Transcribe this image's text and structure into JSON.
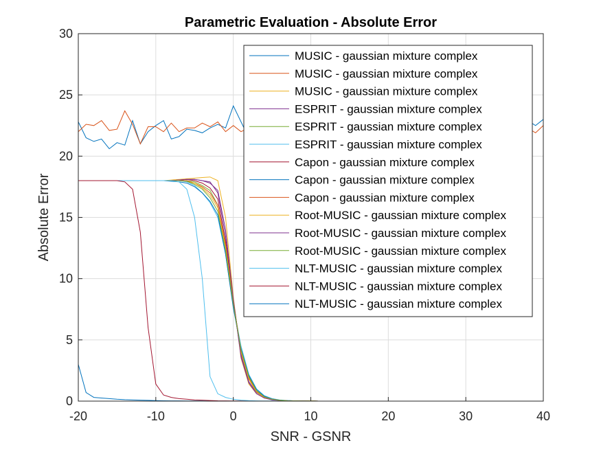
{
  "chart_data": {
    "type": "line",
    "title": "Parametric Evaluation - Absolute Error",
    "xlabel": "SNR - GSNR",
    "ylabel": "Absolute Error",
    "xlim": [
      -20,
      40
    ],
    "ylim": [
      0,
      30
    ],
    "xticks": [
      -20,
      -10,
      0,
      10,
      20,
      30,
      40
    ],
    "yticks": [
      0,
      5,
      10,
      15,
      20,
      25,
      30
    ],
    "grid": true,
    "legend_position": "top-right",
    "x": [
      -20,
      -19,
      -18,
      -17,
      -16,
      -15,
      -14,
      -13,
      -12,
      -11,
      -10,
      -9,
      -8,
      -7,
      -6,
      -5,
      -4,
      -3,
      -2,
      -1,
      0,
      1,
      2,
      3,
      4,
      5,
      6,
      7,
      8,
      9,
      10,
      11,
      12,
      13,
      14,
      15,
      16,
      17,
      18,
      19,
      20,
      21,
      22,
      23,
      24,
      25,
      26,
      27,
      28,
      29,
      30,
      31,
      32,
      33,
      34,
      35,
      36,
      37,
      38,
      39,
      40
    ],
    "series": [
      {
        "name": "MUSIC - gaussian mixture complex",
        "color": "#0072BD",
        "values": [
          22.8,
          21.5,
          21.2,
          21.4,
          20.6,
          21.1,
          20.9,
          22.9,
          21.0,
          22.0,
          22.5,
          22.9,
          21.4,
          21.6,
          22.2,
          22.1,
          21.9,
          22.3,
          22.6,
          22.3,
          24.1,
          22.8,
          21.5,
          22.5,
          22.1,
          22.8,
          21.9,
          22.4,
          22.6,
          22.0,
          22.3,
          22.8,
          21.8,
          22.4,
          22.9,
          21.6,
          22.2,
          22.5,
          22.0,
          22.7,
          21.9,
          22.4,
          22.8,
          22.1,
          22.5,
          21.8,
          22.6,
          22.3,
          22.0,
          22.9,
          22.2,
          21.7,
          22.5,
          22.8,
          22.1,
          22.4,
          22.6,
          22.0,
          22.9,
          22.5,
          23.0
        ]
      },
      {
        "name": "MUSIC - gaussian mixture complex",
        "color": "#D95319",
        "values": [
          22.0,
          22.6,
          22.5,
          22.9,
          22.1,
          22.2,
          23.7,
          22.6,
          21.0,
          22.4,
          22.4,
          22.0,
          22.7,
          22.0,
          22.3,
          22.3,
          22.7,
          22.4,
          22.8,
          22.0,
          22.5,
          22.0,
          22.3,
          22.2,
          22.6,
          21.9,
          22.4,
          22.1,
          22.8,
          22.3,
          21.9,
          22.5,
          22.2,
          22.7,
          22.0,
          22.4,
          22.6,
          22.1,
          22.3,
          22.8,
          21.8,
          22.5,
          22.2,
          22.6,
          22.0,
          22.4,
          22.9,
          22.1,
          22.3,
          22.7,
          21.9,
          22.5,
          22.2,
          22.8,
          22.0,
          22.4,
          22.6,
          22.1,
          22.3,
          21.9,
          22.5
        ]
      },
      {
        "name": "MUSIC - gaussian mixture complex",
        "color": "#EDB120",
        "values": [
          18,
          18,
          18,
          18,
          18,
          18,
          18,
          18,
          18,
          18,
          18,
          18,
          18.05,
          18.1,
          18.15,
          18.2,
          18.25,
          18.3,
          18.0,
          15.0,
          8.5,
          3.5,
          1.4,
          0.6,
          0.25,
          0.12,
          0.06,
          0.03,
          0.02,
          0.01,
          0.01,
          0,
          0,
          0,
          0,
          0,
          0,
          0,
          0,
          0,
          0,
          0,
          0,
          0,
          0,
          0,
          0,
          0,
          0,
          0,
          0,
          0,
          0,
          0,
          0,
          0,
          0,
          0,
          0,
          0,
          0
        ]
      },
      {
        "name": "ESPRIT - gaussian mixture complex",
        "color": "#7E2F8E",
        "values": [
          18,
          18,
          18,
          18,
          18,
          18,
          18,
          18,
          18,
          18,
          18,
          18,
          18,
          18.05,
          18.1,
          18.1,
          18.0,
          17.9,
          17.0,
          13.5,
          8.0,
          3.8,
          1.6,
          0.7,
          0.3,
          0.15,
          0.08,
          0.04,
          0.02,
          0.01,
          0.01,
          0,
          0,
          0,
          0,
          0,
          0,
          0,
          0,
          0,
          0,
          0,
          0,
          0,
          0,
          0,
          0,
          0,
          0,
          0,
          0,
          0,
          0,
          0,
          0,
          0,
          0,
          0,
          0,
          0,
          0
        ]
      },
      {
        "name": "ESPRIT - gaussian mixture complex",
        "color": "#77AC30",
        "values": [
          18,
          18,
          18,
          18,
          18,
          18,
          18,
          18,
          18,
          18,
          18,
          18,
          18,
          18,
          18.0,
          17.9,
          17.6,
          17.2,
          16.0,
          12.5,
          8.0,
          4.2,
          1.9,
          0.8,
          0.35,
          0.15,
          0.07,
          0.03,
          0.02,
          0.01,
          0.01,
          0,
          0,
          0,
          0,
          0,
          0,
          0,
          0,
          0,
          0,
          0,
          0,
          0,
          0,
          0,
          0,
          0,
          0,
          0,
          0,
          0,
          0,
          0,
          0,
          0,
          0,
          0,
          0,
          0,
          0
        ]
      },
      {
        "name": "ESPRIT - gaussian mixture complex",
        "color": "#4DBEEE",
        "values": [
          18,
          18,
          18,
          18,
          18,
          18,
          18,
          18,
          18,
          18,
          18,
          18,
          18,
          18,
          17.9,
          17.6,
          17.0,
          16.2,
          15.0,
          12.0,
          7.8,
          4.5,
          2.2,
          1.0,
          0.45,
          0.2,
          0.1,
          0.05,
          0.02,
          0.01,
          0.01,
          0,
          0,
          0,
          0,
          0,
          0,
          0,
          0,
          0,
          0,
          0,
          0,
          0,
          0,
          0,
          0,
          0,
          0,
          0,
          0,
          0,
          0,
          0,
          0,
          0,
          0,
          0,
          0,
          0,
          0
        ]
      },
      {
        "name": "Capon - gaussian mixture complex",
        "color": "#A2142F",
        "values": [
          18,
          18,
          18,
          18,
          18,
          18,
          18,
          18,
          18,
          18,
          18,
          18,
          18,
          18.05,
          18.1,
          18.0,
          17.8,
          17.4,
          16.5,
          13.0,
          8.2,
          4.0,
          1.8,
          0.75,
          0.3,
          0.12,
          0.06,
          0.03,
          0.02,
          0.01,
          0.01,
          0,
          0,
          0,
          0,
          0,
          0,
          0,
          0,
          0,
          0,
          0,
          0,
          0,
          0,
          0,
          0,
          0,
          0,
          0,
          0,
          0,
          0,
          0,
          0,
          0,
          0,
          0,
          0,
          0,
          0
        ]
      },
      {
        "name": "Capon - gaussian mixture complex",
        "color": "#0072BD",
        "values": [
          18,
          18,
          18,
          18,
          18,
          18,
          18,
          18,
          18,
          18,
          18,
          18,
          17.95,
          17.9,
          17.8,
          17.5,
          17.0,
          16.3,
          15.2,
          12.0,
          7.6,
          4.3,
          2.1,
          0.95,
          0.4,
          0.18,
          0.08,
          0.04,
          0.02,
          0.01,
          0.01,
          0,
          0,
          0,
          0,
          0,
          0,
          0,
          0,
          0,
          0,
          0,
          0,
          0,
          0,
          0,
          0,
          0,
          0,
          0,
          0,
          0,
          0,
          0,
          0,
          0,
          0,
          0,
          0,
          0,
          0
        ]
      },
      {
        "name": "Capon - gaussian mixture complex",
        "color": "#D95319",
        "values": [
          18,
          18,
          18,
          18,
          18,
          18,
          18,
          18,
          18,
          18,
          18,
          18,
          18,
          18,
          18.0,
          17.8,
          17.5,
          17.0,
          16.0,
          12.8,
          8.1,
          4.1,
          1.9,
          0.8,
          0.35,
          0.15,
          0.07,
          0.03,
          0.02,
          0.01,
          0.01,
          0,
          0,
          0,
          0,
          0,
          0,
          0,
          0,
          0,
          0,
          0,
          0,
          0,
          0,
          0,
          0,
          0,
          0,
          0,
          0,
          0,
          0,
          0,
          0,
          0,
          0,
          0,
          0,
          0,
          0
        ]
      },
      {
        "name": "Root-MUSIC - gaussian mixture complex",
        "color": "#EDB120",
        "values": [
          18,
          18,
          18,
          18,
          18,
          18,
          18,
          18,
          18,
          18,
          18,
          18,
          18,
          18,
          17.95,
          17.8,
          17.4,
          16.8,
          15.8,
          12.6,
          8.0,
          4.0,
          1.8,
          0.75,
          0.3,
          0.13,
          0.06,
          0.03,
          0.02,
          0.01,
          0.01,
          0,
          0,
          0,
          0,
          0,
          0,
          0,
          0,
          0,
          0,
          0,
          0,
          0,
          0,
          0,
          0,
          0,
          0,
          0,
          0,
          0,
          0,
          0,
          0,
          0,
          0,
          0,
          0,
          0,
          0
        ]
      },
      {
        "name": "Root-MUSIC - gaussian mixture complex",
        "color": "#7E2F8E",
        "values": [
          18,
          18,
          18,
          18,
          18,
          18,
          18,
          18,
          18,
          18,
          18,
          18,
          18,
          18.05,
          18.1,
          18.1,
          18.0,
          17.8,
          17.2,
          14.0,
          8.3,
          3.6,
          1.5,
          0.6,
          0.25,
          0.1,
          0.05,
          0.02,
          0.01,
          0.01,
          0,
          0,
          0,
          0,
          0,
          0,
          0,
          0,
          0,
          0,
          0,
          0,
          0,
          0,
          0,
          0,
          0,
          0,
          0,
          0,
          0,
          0,
          0,
          0,
          0,
          0,
          0,
          0,
          0,
          0,
          0
        ]
      },
      {
        "name": "Root-MUSIC - gaussian mixture complex",
        "color": "#77AC30",
        "values": [
          18,
          18,
          18,
          18,
          18,
          18,
          18,
          18,
          18,
          18,
          18,
          18,
          18,
          18,
          17.95,
          17.7,
          17.3,
          16.6,
          15.5,
          12.3,
          7.9,
          4.2,
          2.0,
          0.85,
          0.35,
          0.15,
          0.07,
          0.03,
          0.02,
          0.01,
          0.01,
          0,
          0,
          0,
          0,
          0,
          0,
          0,
          0,
          0,
          0,
          0,
          0,
          0,
          0,
          0,
          0,
          0,
          0,
          0,
          0,
          0,
          0,
          0,
          0,
          0,
          0,
          0,
          0,
          0,
          0
        ]
      },
      {
        "name": "NLT-MUSIC - gaussian mixture complex",
        "color": "#4DBEEE",
        "values": [
          18,
          18,
          18,
          18,
          18,
          18,
          18,
          18,
          18,
          18,
          18,
          18,
          18,
          17.9,
          17.3,
          15.0,
          10.0,
          2.0,
          0.6,
          0.3,
          0.15,
          0.08,
          0.04,
          0.02,
          0.01,
          0.01,
          0,
          0,
          0,
          0,
          0,
          0,
          0,
          0,
          0,
          0,
          0,
          0,
          0,
          0,
          0,
          0,
          0,
          0,
          0,
          0,
          0,
          0,
          0,
          0,
          0,
          0,
          0,
          0,
          0,
          0,
          0,
          0,
          0,
          0,
          0
        ]
      },
      {
        "name": "NLT-MUSIC - gaussian mixture complex",
        "color": "#A2142F",
        "values": [
          18,
          18,
          18,
          18,
          18,
          18,
          17.9,
          17.3,
          13.8,
          6.0,
          1.4,
          0.5,
          0.3,
          0.2,
          0.15,
          0.1,
          0.08,
          0.05,
          0.03,
          0.02,
          0.01,
          0.01,
          0,
          0,
          0,
          0,
          0,
          0,
          0,
          0,
          0,
          0,
          0,
          0,
          0,
          0,
          0,
          0,
          0,
          0,
          0,
          0,
          0,
          0,
          0,
          0,
          0,
          0,
          0,
          0,
          0,
          0,
          0,
          0,
          0,
          0,
          0,
          0,
          0,
          0,
          0
        ]
      },
      {
        "name": "NLT-MUSIC - gaussian mixture complex",
        "color": "#0072BD",
        "values": [
          3.0,
          0.7,
          0.3,
          0.25,
          0.2,
          0.15,
          0.12,
          0.1,
          0.08,
          0.06,
          0.04,
          0.03,
          0.02,
          0.02,
          0.01,
          0.01,
          0.01,
          0,
          0,
          0,
          0,
          0,
          0,
          0,
          0,
          0,
          0,
          0,
          0,
          0,
          0,
          0,
          0,
          0,
          0,
          0,
          0,
          0,
          0,
          0,
          0,
          0,
          0,
          0,
          0,
          0,
          0,
          0,
          0,
          0,
          0,
          0,
          0,
          0,
          0,
          0,
          0,
          0,
          0,
          0,
          0
        ]
      }
    ]
  }
}
